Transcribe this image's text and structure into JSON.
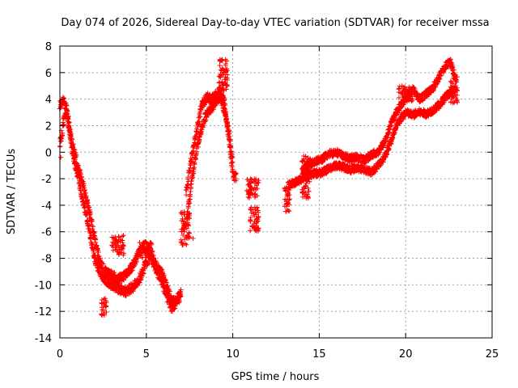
{
  "colors": {
    "series": "#ff0000",
    "grid": "#a0a0a0",
    "axis": "#000000",
    "background": "#ffffff"
  },
  "chart_data": {
    "type": "scatter",
    "marker": "plus",
    "title": "Day 074 of 2026, Sidereal Day-to-day VTEC variation (SDTVAR) for receiver mssa",
    "xlabel": "GPS time / hours",
    "ylabel": "SDTVAR / TECUs",
    "xlim": [
      0,
      25
    ],
    "ylim": [
      -14,
      8
    ],
    "xticks": [
      0,
      5,
      10,
      15,
      20,
      25
    ],
    "xtick_labels": [
      "0",
      "5",
      "10",
      "15",
      "20",
      "25"
    ],
    "yticks": [
      -14,
      -12,
      -10,
      -8,
      -6,
      -4,
      -2,
      0,
      2,
      4,
      6,
      8
    ],
    "ytick_labels": [
      "-14",
      "-12",
      "-10",
      "-8",
      "-6",
      "-4",
      "-2",
      "0",
      "2",
      "4",
      "6",
      "8"
    ],
    "grid": true,
    "series": [
      {
        "name": "SDTVAR",
        "band_tracks": [
          {
            "halfwidth": 0.35,
            "x": [
              0.0,
              0.2,
              0.4,
              0.6,
              0.8,
              1.0,
              1.2,
              1.5,
              1.8,
              2.0,
              2.3,
              2.6,
              3.0,
              3.4,
              3.8,
              4.2,
              4.6,
              4.9,
              5.2,
              5.5,
              5.9,
              6.2,
              6.5,
              6.8,
              7.0
            ],
            "y": [
              3.5,
              4.0,
              3.2,
              1.5,
              0.2,
              -0.8,
              -1.8,
              -3.3,
              -5.0,
              -6.5,
              -8.2,
              -9.0,
              -9.3,
              -9.6,
              -9.2,
              -8.6,
              -7.5,
              -7.0,
              -7.4,
              -8.4,
              -9.2,
              -10.2,
              -11.4,
              -11.0,
              -10.7
            ]
          },
          {
            "halfwidth": 0.35,
            "x": [
              0.0,
              0.2,
              0.4,
              0.6,
              0.8,
              1.0,
              1.2,
              1.5,
              1.8,
              2.0,
              2.3,
              2.6,
              3.0,
              3.4,
              3.8,
              4.2,
              4.6,
              4.9,
              5.2,
              5.5,
              5.9,
              6.2,
              6.5,
              6.8,
              7.0
            ],
            "y": [
              0.5,
              2.2,
              3.0,
              1.0,
              -0.5,
              -1.5,
              -2.8,
              -4.5,
              -6.5,
              -8.0,
              -9.0,
              -9.6,
              -10.0,
              -10.3,
              -10.5,
              -10.2,
              -9.6,
              -8.6,
              -7.8,
              -8.6,
              -9.8,
              -11.0,
              -11.8,
              -11.2,
              -10.8
            ]
          },
          {
            "halfwidth": 0.32,
            "x": [
              7.3,
              7.6,
              7.9,
              8.2,
              8.5,
              8.8,
              9.1,
              9.3,
              9.5,
              9.7,
              9.9,
              10.0
            ],
            "y": [
              -5.5,
              -2.5,
              0.2,
              1.8,
              3.0,
              3.4,
              3.9,
              4.5,
              3.8,
              1.8,
              -0.5,
              -1.8
            ]
          },
          {
            "halfwidth": 0.32,
            "x": [
              7.3,
              7.6,
              7.9,
              8.2,
              8.5,
              8.8,
              9.1,
              9.3,
              9.5,
              9.7,
              9.9,
              10.0
            ],
            "y": [
              -3.0,
              -0.5,
              1.5,
              3.5,
              4.2,
              4.0,
              4.5,
              4.0,
              3.2,
              2.0,
              0.5,
              -1.0
            ]
          },
          {
            "halfwidth": 0.28,
            "x": [
              13.2,
              13.6,
              14.0,
              14.4,
              14.8,
              15.2,
              15.6,
              16.0,
              16.4,
              16.8,
              17.2,
              17.6,
              18.0,
              18.4,
              18.8,
              19.2,
              19.6,
              20.0,
              20.4,
              20.8,
              21.2,
              21.6,
              22.0,
              22.3,
              22.6,
              22.9
            ],
            "y": [
              -2.5,
              -2.3,
              -2.0,
              -1.7,
              -1.6,
              -1.5,
              -1.2,
              -1.0,
              -1.1,
              -1.3,
              -1.2,
              -1.3,
              -1.5,
              -1.0,
              -0.3,
              1.0,
              2.3,
              3.0,
              2.8,
              3.0,
              2.9,
              3.2,
              3.6,
              4.2,
              4.5,
              4.8
            ]
          },
          {
            "halfwidth": 0.28,
            "x": [
              14.0,
              14.4,
              14.8,
              15.2,
              15.6,
              16.0,
              16.4,
              16.8,
              17.2,
              17.6,
              18.0,
              18.4,
              18.8,
              19.2,
              19.6,
              20.0,
              20.4,
              20.8,
              21.2,
              21.6,
              22.0,
              22.3,
              22.6,
              22.9
            ],
            "y": [
              -1.5,
              -0.9,
              -0.7,
              -0.5,
              -0.1,
              0.0,
              -0.3,
              -0.5,
              -0.4,
              -0.6,
              -0.2,
              0.0,
              0.8,
              2.3,
              3.3,
              4.1,
              4.8,
              4.0,
              4.4,
              4.9,
              5.8,
              6.5,
              6.8,
              5.5
            ]
          }
        ],
        "clusters": [
          {
            "x0": 3.0,
            "x1": 3.7,
            "y0": -7.8,
            "y1": -6.2
          },
          {
            "x0": 4.6,
            "x1": 5.4,
            "y0": -8.0,
            "y1": -6.8
          },
          {
            "x0": 2.4,
            "x1": 2.7,
            "y0": -12.3,
            "y1": -11.0
          },
          {
            "x0": 7.0,
            "x1": 7.5,
            "y0": -7.0,
            "y1": -4.5
          },
          {
            "x0": 9.2,
            "x1": 9.7,
            "y0": 4.5,
            "y1": 7.0
          },
          {
            "x0": 10.0,
            "x1": 10.2,
            "y0": -2.2,
            "y1": -1.5
          },
          {
            "x0": 10.8,
            "x1": 11.5,
            "y0": -3.5,
            "y1": -2.0
          },
          {
            "x0": 11.0,
            "x1": 11.5,
            "y0": -6.0,
            "y1": -4.0
          },
          {
            "x0": 13.0,
            "x1": 13.3,
            "y0": -4.5,
            "y1": -2.5
          },
          {
            "x0": 14.0,
            "x1": 14.5,
            "y0": -3.5,
            "y1": -0.2
          },
          {
            "x0": 19.6,
            "x1": 20.4,
            "y0": 3.8,
            "y1": 5.0
          },
          {
            "x0": 22.6,
            "x1": 23.0,
            "y0": 3.7,
            "y1": 5.7
          }
        ],
        "isolated_points": [
          [
            0.05,
            -0.4
          ],
          [
            7.7,
            -6.5
          ],
          [
            11.4,
            -5.8
          ],
          [
            9.4,
            6.9
          ]
        ]
      }
    ]
  }
}
